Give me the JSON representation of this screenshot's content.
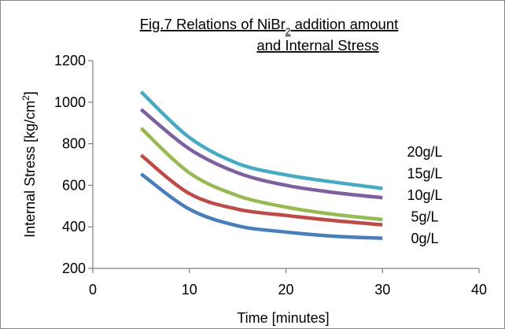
{
  "chart_data": {
    "type": "line",
    "title": {
      "line1_prefix": "Fig.7 Relations of  NiBr",
      "line1_subscript": "2",
      "line1_suffix": " addition amount",
      "line2": "and  Internal Stress"
    },
    "xlabel": "Time [minutes]",
    "ylabel_prefix": "Internal Stress [kg/cm",
    "ylabel_superscript": "2",
    "ylabel_suffix": "]",
    "xlim": [
      0,
      40
    ],
    "ylim": [
      200,
      1200
    ],
    "x_ticks": [
      "0",
      "10",
      "20",
      "30",
      "40"
    ],
    "y_ticks": [
      "200",
      "400",
      "600",
      "800",
      "1000",
      "1200"
    ],
    "grid": false,
    "legend": "none",
    "series": [
      {
        "name": "0g/L",
        "color": "#4a7ebb",
        "x": [
          5,
          10,
          15,
          20,
          25,
          30
        ],
        "values": [
          655,
          485,
          405,
          375,
          355,
          345
        ]
      },
      {
        "name": "5g/L",
        "color": "#be4b48",
        "x": [
          5,
          10,
          15,
          20,
          25,
          30
        ],
        "values": [
          745,
          560,
          485,
          455,
          430,
          410
        ]
      },
      {
        "name": "10g/L",
        "color": "#98b954",
        "x": [
          5,
          10,
          15,
          20,
          25,
          30
        ],
        "values": [
          875,
          660,
          550,
          495,
          460,
          435
        ]
      },
      {
        "name": "15g/L",
        "color": "#7d60a0",
        "x": [
          5,
          10,
          15,
          20,
          25,
          30
        ],
        "values": [
          965,
          775,
          660,
          600,
          565,
          540
        ]
      },
      {
        "name": "20g/L",
        "color": "#46aac5",
        "x": [
          5,
          10,
          15,
          20,
          25,
          30
        ],
        "values": [
          1050,
          830,
          705,
          650,
          615,
          585
        ]
      }
    ]
  }
}
